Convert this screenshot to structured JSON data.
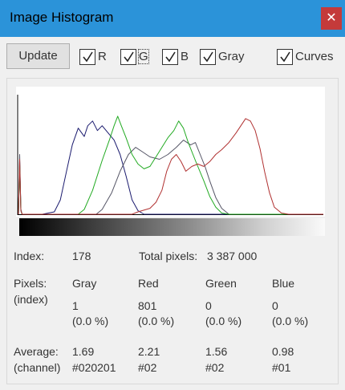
{
  "window": {
    "title": "Image Histogram",
    "close_glyph": "✕"
  },
  "toolbar": {
    "update_label": "Update",
    "checkboxes": [
      {
        "label": "R",
        "checked": true
      },
      {
        "label": "G",
        "checked": true
      },
      {
        "label": "B",
        "checked": true
      },
      {
        "label": "Gray",
        "checked": true
      },
      {
        "label": "Curves",
        "checked": true
      }
    ]
  },
  "chart_data": {
    "type": "line",
    "xlim": [
      0,
      255
    ],
    "title": "",
    "xlabel": "",
    "ylabel": "",
    "series": [
      {
        "color": "#1a1a6e",
        "points": [
          [
            0,
            0
          ],
          [
            1,
            0.45
          ],
          [
            2,
            0.04
          ],
          [
            3,
            0
          ],
          [
            20,
            0
          ],
          [
            30,
            0.02
          ],
          [
            35,
            0.12
          ],
          [
            40,
            0.35
          ],
          [
            45,
            0.58
          ],
          [
            50,
            0.72
          ],
          [
            55,
            0.65
          ],
          [
            58,
            0.74
          ],
          [
            62,
            0.78
          ],
          [
            66,
            0.7
          ],
          [
            70,
            0.74
          ],
          [
            75,
            0.68
          ],
          [
            80,
            0.62
          ],
          [
            85,
            0.5
          ],
          [
            90,
            0.32
          ],
          [
            95,
            0.12
          ],
          [
            100,
            0.03
          ],
          [
            105,
            0
          ],
          [
            255,
            0
          ]
        ]
      },
      {
        "color": "#555566",
        "points": [
          [
            0,
            0
          ],
          [
            1,
            0.5
          ],
          [
            2,
            0.04
          ],
          [
            3,
            0
          ],
          [
            65,
            0
          ],
          [
            70,
            0.04
          ],
          [
            78,
            0.18
          ],
          [
            85,
            0.36
          ],
          [
            92,
            0.5
          ],
          [
            98,
            0.56
          ],
          [
            104,
            0.52
          ],
          [
            110,
            0.48
          ],
          [
            118,
            0.46
          ],
          [
            125,
            0.5
          ],
          [
            132,
            0.56
          ],
          [
            138,
            0.62
          ],
          [
            144,
            0.58
          ],
          [
            148,
            0.6
          ],
          [
            152,
            0.5
          ],
          [
            156,
            0.4
          ],
          [
            160,
            0.28
          ],
          [
            165,
            0.14
          ],
          [
            170,
            0.05
          ],
          [
            176,
            0
          ],
          [
            255,
            0
          ]
        ]
      },
      {
        "color": "#22aa22",
        "points": [
          [
            0,
            0
          ],
          [
            1,
            0.42
          ],
          [
            2,
            0.03
          ],
          [
            3,
            0
          ],
          [
            50,
            0
          ],
          [
            55,
            0.04
          ],
          [
            62,
            0.2
          ],
          [
            70,
            0.45
          ],
          [
            76,
            0.62
          ],
          [
            80,
            0.74
          ],
          [
            83,
            0.82
          ],
          [
            86,
            0.74
          ],
          [
            90,
            0.64
          ],
          [
            95,
            0.5
          ],
          [
            100,
            0.42
          ],
          [
            105,
            0.38
          ],
          [
            110,
            0.4
          ],
          [
            115,
            0.48
          ],
          [
            120,
            0.56
          ],
          [
            125,
            0.64
          ],
          [
            130,
            0.7
          ],
          [
            134,
            0.78
          ],
          [
            138,
            0.72
          ],
          [
            142,
            0.6
          ],
          [
            148,
            0.45
          ],
          [
            155,
            0.28
          ],
          [
            160,
            0.15
          ],
          [
            165,
            0.06
          ],
          [
            170,
            0.01
          ],
          [
            176,
            0
          ],
          [
            255,
            0
          ]
        ]
      },
      {
        "color": "#b03030",
        "points": [
          [
            0,
            0
          ],
          [
            1,
            0.46
          ],
          [
            2,
            0.03
          ],
          [
            3,
            0
          ],
          [
            95,
            0
          ],
          [
            100,
            0.02
          ],
          [
            110,
            0.05
          ],
          [
            115,
            0.1
          ],
          [
            120,
            0.2
          ],
          [
            124,
            0.36
          ],
          [
            128,
            0.46
          ],
          [
            132,
            0.5
          ],
          [
            136,
            0.44
          ],
          [
            140,
            0.36
          ],
          [
            145,
            0.4
          ],
          [
            150,
            0.42
          ],
          [
            155,
            0.4
          ],
          [
            160,
            0.44
          ],
          [
            165,
            0.5
          ],
          [
            170,
            0.54
          ],
          [
            176,
            0.6
          ],
          [
            182,
            0.68
          ],
          [
            186,
            0.74
          ],
          [
            190,
            0.8
          ],
          [
            194,
            0.78
          ],
          [
            198,
            0.7
          ],
          [
            202,
            0.55
          ],
          [
            206,
            0.35
          ],
          [
            210,
            0.18
          ],
          [
            214,
            0.06
          ],
          [
            220,
            0.01
          ],
          [
            226,
            0
          ],
          [
            255,
            0
          ]
        ]
      }
    ]
  },
  "info": {
    "index_label": "Index:",
    "index_value": "178",
    "total_pixels_label": "Total pixels:",
    "total_pixels_value": "3 387 000",
    "pixels_label": "Pixels:",
    "pixels_sub": "(index)",
    "columns": [
      {
        "header": "Gray",
        "count": "1",
        "percent": "(0.0 %)",
        "average": "1.69",
        "code": "#020201"
      },
      {
        "header": "Red",
        "count": "801",
        "percent": "(0.0 %)",
        "average": "2.21",
        "code": "#02"
      },
      {
        "header": "Green",
        "count": "0",
        "percent": "(0.0 %)",
        "average": "1.56",
        "code": "#02"
      },
      {
        "header": "Blue",
        "count": "0",
        "percent": "(0.0 %)",
        "average": "0.98",
        "code": "#01"
      }
    ],
    "average_label": "Average:",
    "average_sub": "(channel)"
  }
}
